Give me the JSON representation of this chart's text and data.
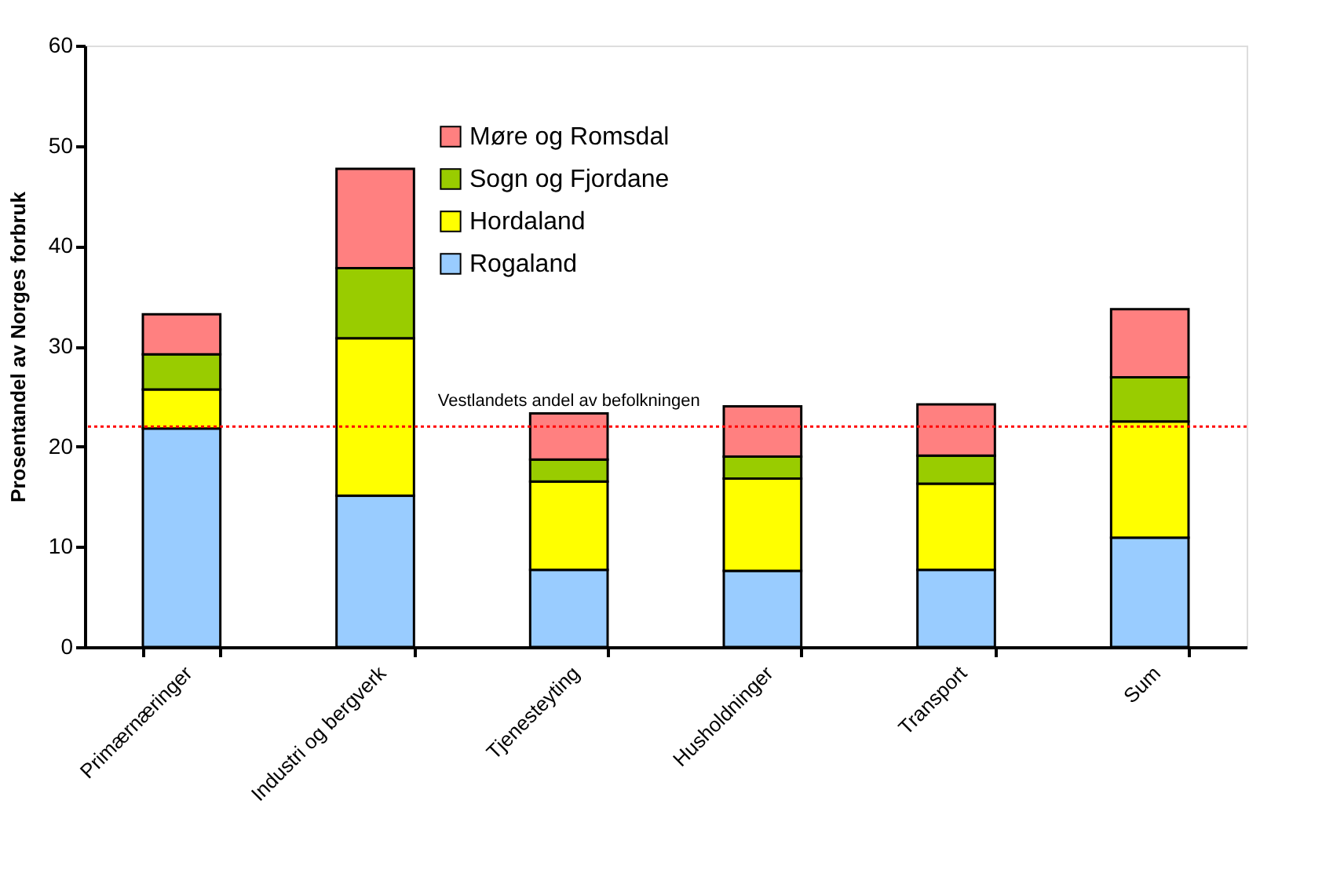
{
  "chart_data": {
    "type": "bar",
    "stacked": true,
    "ylabel": "Prosentandel av Norges forbruk",
    "categories": [
      "Primærnæringer",
      "Industri og bergverk",
      "Tjenesteyting",
      "Husholdninger",
      "Transport",
      "Sum"
    ],
    "series": [
      {
        "name": "Rogaland",
        "color": "#99ccff",
        "values": [
          21.8,
          15.1,
          7.7,
          7.6,
          7.7,
          10.9
        ]
      },
      {
        "name": "Hordaland",
        "color": "#ffff00",
        "values": [
          3.9,
          15.7,
          8.8,
          9.2,
          8.6,
          11.6
        ]
      },
      {
        "name": "Sogn og Fjordane",
        "color": "#99cc00",
        "values": [
          3.5,
          7.0,
          2.2,
          2.2,
          2.8,
          4.4
        ]
      },
      {
        "name": "Møre og Romsdal",
        "color": "#ff8080",
        "values": [
          4.0,
          9.9,
          4.6,
          5.0,
          5.1,
          6.8
        ]
      }
    ],
    "ylim": [
      0,
      60
    ],
    "yticks": [
      0,
      10,
      20,
      30,
      40,
      50,
      60
    ],
    "grid": false,
    "legend": "top",
    "ref_lines": [
      {
        "axis": "y",
        "value": 22.0,
        "label": "Vestlandets andel av befolkningen",
        "color": "#ff0000",
        "line_style": "dotted"
      }
    ]
  }
}
